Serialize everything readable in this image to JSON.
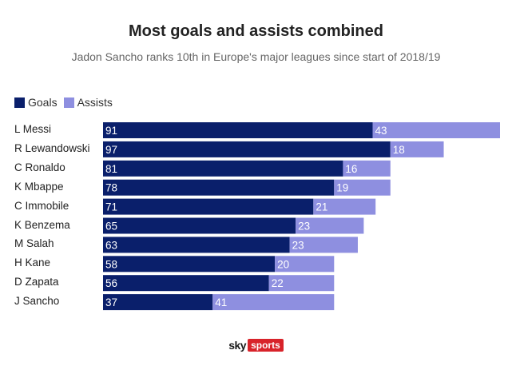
{
  "chart_data": {
    "type": "bar",
    "orientation": "horizontal",
    "stacked": true,
    "title": "Most goals and assists combined",
    "subtitle": "Jadon Sancho ranks 10th in Europe's major leagues since start of 2018/19",
    "categories": [
      "L Messi",
      "R Lewandowski",
      "C Ronaldo",
      "K Mbappe",
      "C Immobile",
      "K Benzema",
      "M Salah",
      "H Kane",
      "D Zapata",
      "J Sancho"
    ],
    "series": [
      {
        "name": "Goals",
        "color": "#0a1f6b",
        "values": [
          91,
          97,
          81,
          78,
          71,
          65,
          63,
          58,
          56,
          37
        ]
      },
      {
        "name": "Assists",
        "color": "#8e8fe0",
        "values": [
          43,
          18,
          16,
          19,
          21,
          23,
          23,
          20,
          22,
          41
        ]
      }
    ],
    "legend_position": "top-left",
    "grid": false,
    "xlim": [
      0,
      134
    ]
  },
  "footer": {
    "brand_sky": "sky",
    "brand_sports": "sports"
  }
}
